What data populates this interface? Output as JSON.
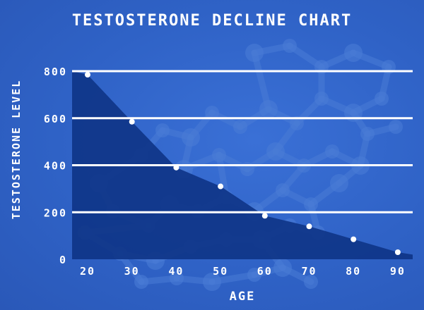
{
  "chart_data": {
    "type": "area",
    "title": "TESTOSTERONE DECLINE CHART",
    "xlabel": "AGE",
    "ylabel": "TESTOSTERONE LEVEL",
    "x": [
      20,
      30,
      40,
      50,
      60,
      70,
      80,
      90
    ],
    "x_tick_labels": [
      "20",
      "30",
      "40",
      "50",
      "60",
      "70",
      "80",
      "90"
    ],
    "y_tick_values": [
      0,
      200,
      400,
      600,
      800
    ],
    "y_tick_labels": [
      "0",
      "200",
      "400",
      "600",
      "800"
    ],
    "ylim": [
      0,
      800
    ],
    "xlim": [
      20,
      90
    ],
    "series": [
      {
        "points": [
          {
            "x": 20,
            "y": 785
          },
          {
            "x": 30,
            "y": 585
          },
          {
            "x": 40,
            "y": 390
          },
          {
            "x": 50,
            "y": 310
          },
          {
            "x": 60,
            "y": 185
          },
          {
            "x": 70,
            "y": 140
          },
          {
            "x": 80,
            "y": 85
          },
          {
            "x": 90,
            "y": 30
          }
        ],
        "area_start": {
          "x": 20,
          "y": 800
        },
        "area_end": {
          "x": 94,
          "y": 20
        }
      }
    ],
    "grid": true,
    "colors": {
      "background": "#2f63c9",
      "area": "#0f3588",
      "gridline": "#ffffff",
      "marker": "#ffffff",
      "text": "#ffffff",
      "molecule": "#4a7cd6"
    }
  }
}
